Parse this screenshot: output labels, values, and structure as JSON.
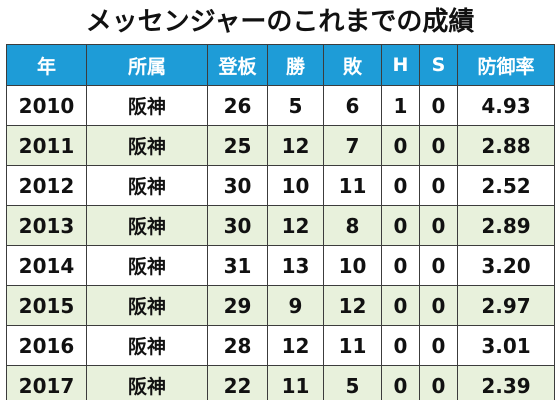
{
  "title": "メッセンジャーのこれまでの成績",
  "table": {
    "headers": [
      "年",
      "所属",
      "登板",
      "勝",
      "敗",
      "H",
      "S",
      "防御率"
    ],
    "rows": [
      [
        "2010",
        "阪神",
        "26",
        "5",
        "6",
        "1",
        "0",
        "4.93"
      ],
      [
        "2011",
        "阪神",
        "25",
        "12",
        "7",
        "0",
        "0",
        "2.88"
      ],
      [
        "2012",
        "阪神",
        "30",
        "10",
        "11",
        "0",
        "0",
        "2.52"
      ],
      [
        "2013",
        "阪神",
        "30",
        "12",
        "8",
        "0",
        "0",
        "2.89"
      ],
      [
        "2014",
        "阪神",
        "31",
        "13",
        "10",
        "0",
        "0",
        "3.20"
      ],
      [
        "2015",
        "阪神",
        "29",
        "9",
        "12",
        "0",
        "0",
        "2.97"
      ],
      [
        "2016",
        "阪神",
        "28",
        "12",
        "11",
        "0",
        "0",
        "3.01"
      ],
      [
        "2017",
        "阪神",
        "22",
        "11",
        "5",
        "0",
        "0",
        "2.39"
      ]
    ]
  },
  "colors": {
    "header_bg": "#1e9cd7",
    "header_text": "#ffffff",
    "row_odd_bg": "#ffffff",
    "row_even_bg": "#e8f1dc",
    "border": "#3c3c3c"
  }
}
